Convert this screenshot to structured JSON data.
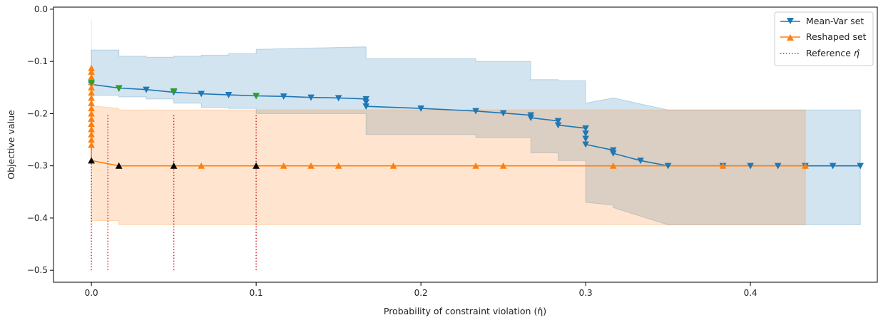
{
  "chart_data": {
    "type": "line",
    "xlabel": "Probability of constraint violation (η̂)",
    "ylabel": "Objective value",
    "xlim": [
      -0.023,
      0.477
    ],
    "ylim": [
      -0.523,
      0.004
    ],
    "xticks": [
      0.0,
      0.1,
      0.2,
      0.3,
      0.4
    ],
    "xtick_labels": [
      "0.0",
      "0.1",
      "0.2",
      "0.3",
      "0.4"
    ],
    "yticks": [
      0.0,
      -0.1,
      -0.2,
      -0.3,
      -0.4,
      -0.5
    ],
    "ytick_labels": [
      "0.0",
      "−0.1",
      "−0.2",
      "−0.3",
      "−0.4",
      "−0.5"
    ],
    "grid": false,
    "legend_position": "top-right",
    "legend": [
      {
        "label": "Mean-Var set",
        "color": "#1f77b4",
        "marker": "triangle-down",
        "style": "solid"
      },
      {
        "label": "Reshaped set",
        "color": "#ff7f0e",
        "marker": "triangle-up",
        "style": "solid"
      },
      {
        "label": "Reference ",
        "math": "η̂",
        "color": "#d62728",
        "style": "dotted"
      }
    ],
    "series": [
      {
        "name": "Mean-Var set",
        "color": "#1f77b4",
        "marker": "triangle-down",
        "x": [
          0.0,
          0.0167,
          0.0333,
          0.05,
          0.0667,
          0.0833,
          0.1,
          0.1167,
          0.1333,
          0.15,
          0.1667,
          0.1667,
          0.1667,
          0.2,
          0.2333,
          0.25,
          0.2667,
          0.2667,
          0.2833,
          0.2833,
          0.3,
          0.3,
          0.3,
          0.3,
          0.3167,
          0.3167,
          0.3333,
          0.35,
          0.3833,
          0.4,
          0.4167,
          0.4333,
          0.45,
          0.4667
        ],
        "y": [
          -0.144,
          -0.151,
          -0.154,
          -0.159,
          -0.162,
          -0.164,
          -0.166,
          -0.167,
          -0.169,
          -0.17,
          -0.172,
          -0.178,
          -0.186,
          -0.19,
          -0.195,
          -0.199,
          -0.203,
          -0.208,
          -0.214,
          -0.222,
          -0.228,
          -0.238,
          -0.248,
          -0.259,
          -0.27,
          -0.276,
          -0.29,
          -0.3,
          -0.3,
          -0.3,
          -0.3,
          -0.3,
          -0.3,
          -0.3
        ]
      },
      {
        "name": "Reshaped set",
        "color": "#ff7f0e",
        "marker": "triangle-up",
        "x": [
          0.0,
          0.0,
          0.0,
          0.0,
          0.0,
          0.0,
          0.0,
          0.0,
          0.0,
          0.0,
          0.0,
          0.0,
          0.0,
          0.0,
          0.0,
          0.0,
          0.0,
          0.0167,
          0.05,
          0.0667,
          0.1,
          0.1167,
          0.1333,
          0.15,
          0.1833,
          0.2333,
          0.25,
          0.3167,
          0.3833,
          0.4333
        ],
        "y": [
          -0.113,
          -0.12,
          -0.13,
          -0.14,
          -0.15,
          -0.16,
          -0.17,
          -0.18,
          -0.19,
          -0.2,
          -0.21,
          -0.22,
          -0.23,
          -0.24,
          -0.25,
          -0.26,
          -0.29,
          -0.3,
          -0.3,
          -0.3,
          -0.3,
          -0.3,
          -0.3,
          -0.3,
          -0.3,
          -0.3,
          -0.3,
          -0.3,
          -0.3,
          -0.3
        ]
      }
    ],
    "highlight_points": [
      {
        "series": "Mean-Var set",
        "color": "#2ca02c",
        "marker": "triangle-down",
        "x": [
          0.0,
          0.0167,
          0.05,
          0.1
        ],
        "y": [
          -0.141,
          -0.152,
          -0.157,
          -0.166
        ]
      },
      {
        "series": "Reshaped set",
        "color": "#000000",
        "marker": "triangle-up",
        "x": [
          0.0,
          0.0167,
          0.05,
          0.1
        ],
        "y": [
          -0.29,
          -0.3,
          -0.3,
          -0.3
        ]
      }
    ],
    "reference_lines": {
      "x": [
        0.0,
        0.01,
        0.05,
        0.1
      ],
      "y_from": -0.5,
      "y_to": -0.2,
      "color": "#d62728"
    },
    "bands": [
      {
        "series": "Mean-Var set",
        "color": "#1f77b4",
        "x": [
          0.0,
          0.0167,
          0.0167,
          0.0333,
          0.0333,
          0.05,
          0.05,
          0.0667,
          0.0667,
          0.0833,
          0.0833,
          0.1,
          0.1,
          0.1667,
          0.1667,
          0.2333,
          0.2333,
          0.2667,
          0.2667,
          0.2833,
          0.2833,
          0.3,
          0.3,
          0.3167,
          0.3167,
          0.35,
          0.4667
        ],
        "upper": [
          -0.078,
          -0.078,
          -0.09,
          -0.09,
          -0.092,
          -0.092,
          -0.09,
          -0.09,
          -0.088,
          -0.088,
          -0.085,
          -0.085,
          -0.077,
          -0.072,
          -0.095,
          -0.095,
          -0.1,
          -0.1,
          -0.135,
          -0.135,
          -0.137,
          -0.137,
          -0.18,
          -0.17,
          -0.17,
          -0.193,
          -0.193
        ],
        "lower": [
          -0.165,
          -0.165,
          -0.168,
          -0.168,
          -0.172,
          -0.172,
          -0.18,
          -0.18,
          -0.188,
          -0.188,
          -0.19,
          -0.19,
          -0.2,
          -0.2,
          -0.24,
          -0.24,
          -0.246,
          -0.246,
          -0.275,
          -0.275,
          -0.29,
          -0.29,
          -0.37,
          -0.375,
          -0.38,
          -0.413,
          -0.413
        ]
      },
      {
        "series": "Reshaped set",
        "color": "#ff7f0e",
        "x": [
          0.0,
          0.0,
          0.0167,
          0.0167,
          0.1667,
          0.1667,
          0.2333,
          0.2333,
          0.2667,
          0.2667,
          0.3,
          0.3,
          0.3333,
          0.35,
          0.4333
        ],
        "upper": [
          -0.02,
          -0.185,
          -0.19,
          -0.193,
          -0.193,
          -0.193,
          -0.193,
          -0.193,
          -0.193,
          -0.193,
          -0.193,
          -0.193,
          -0.193,
          -0.193,
          -0.193
        ],
        "lower": [
          -0.21,
          -0.405,
          -0.405,
          -0.413,
          -0.413,
          -0.413,
          -0.413,
          -0.413,
          -0.413,
          -0.413,
          -0.413,
          -0.413,
          -0.413,
          -0.413,
          -0.413
        ]
      }
    ]
  }
}
